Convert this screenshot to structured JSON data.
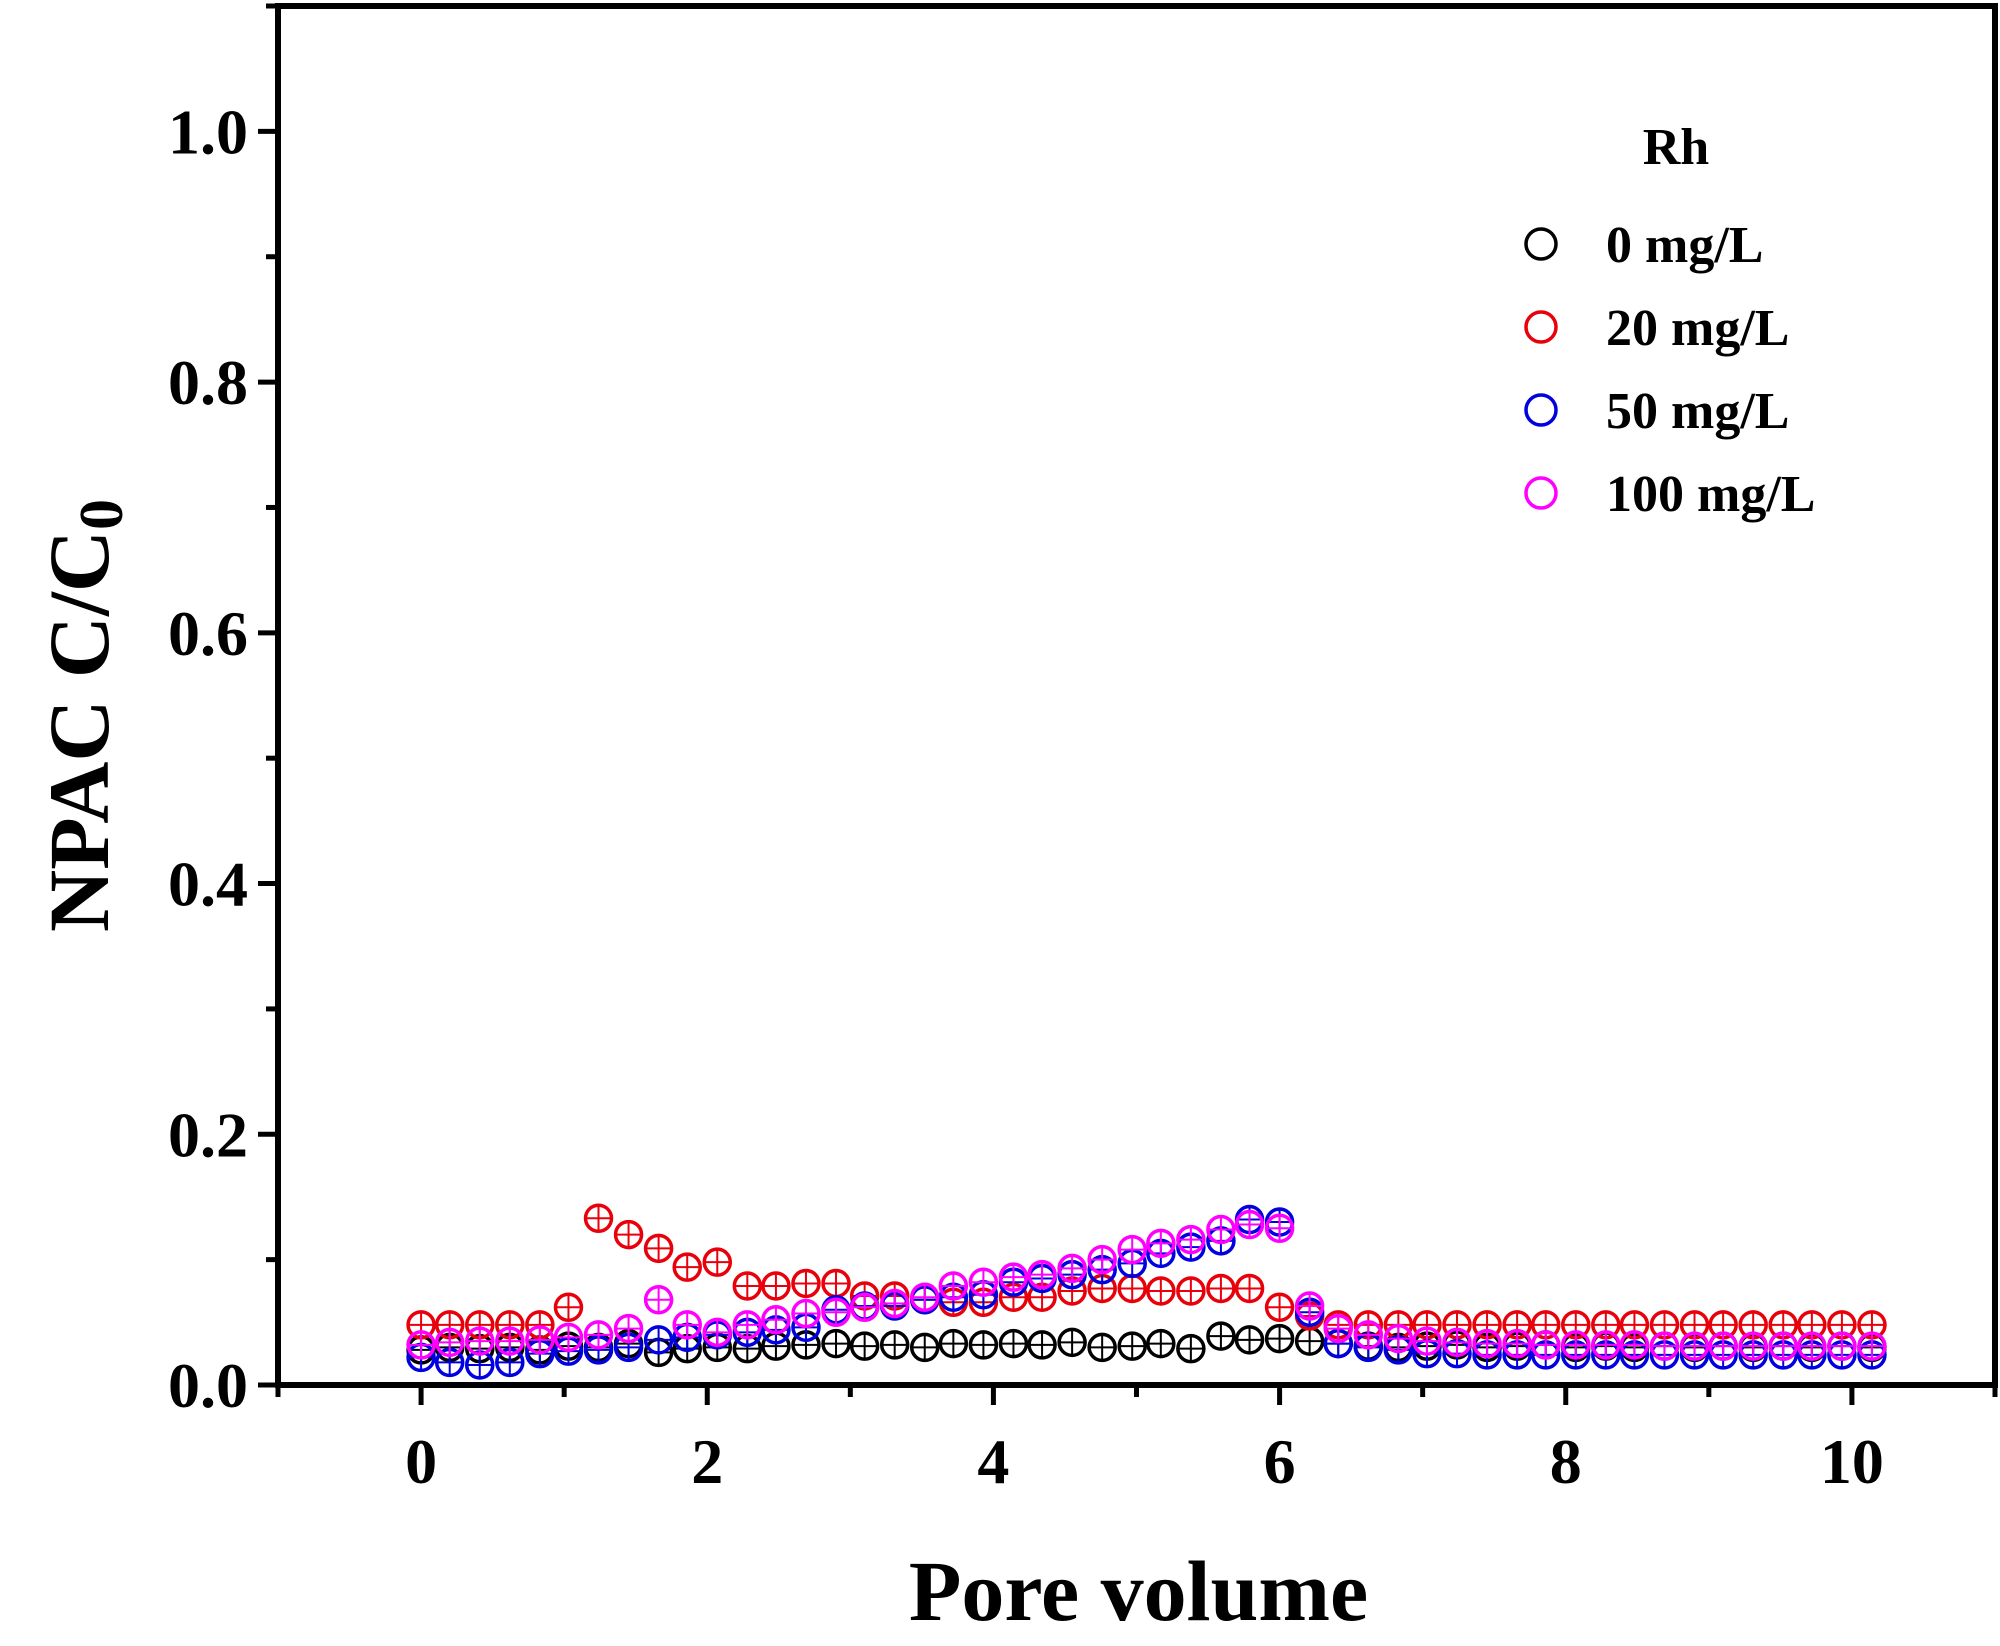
{
  "chart_data": {
    "type": "scatter",
    "title": "",
    "xlabel": "Pore volume",
    "ylabel_main": "NPAC C/C",
    "ylabel_subscript": "0",
    "xlim": [
      -1,
      11
    ],
    "ylim": [
      0,
      1.1
    ],
    "x_ticks": [
      "0",
      "2",
      "4",
      "6",
      "8",
      "10"
    ],
    "y_ticks": [
      "0.0",
      "0.2",
      "0.4",
      "0.6",
      "0.8",
      "1.0"
    ],
    "legend_title": "Rh",
    "series": [
      {
        "name": "0 mg/L",
        "color": "#000000",
        "x": [
          0,
          0.2,
          0.41,
          0.62,
          0.83,
          1.03,
          1.24,
          1.45,
          1.66,
          1.86,
          2.07,
          2.28,
          2.48,
          2.69,
          2.9,
          3.1,
          3.31,
          3.52,
          3.72,
          3.93,
          4.14,
          4.34,
          4.55,
          4.76,
          4.97,
          5.17,
          5.38,
          5.59,
          5.79,
          6.0,
          6.21,
          6.41,
          6.62,
          6.83,
          7.03,
          7.24,
          7.45,
          7.66,
          7.86,
          8.07,
          8.28,
          8.48,
          8.69,
          8.9,
          9.1,
          9.31,
          9.52,
          9.72,
          9.93,
          10.14
        ],
        "y": [
          0.028,
          0.03,
          0.029,
          0.03,
          0.028,
          0.031,
          0.03,
          0.033,
          0.026,
          0.029,
          0.03,
          0.029,
          0.031,
          0.032,
          0.033,
          0.031,
          0.032,
          0.03,
          0.033,
          0.032,
          0.033,
          0.032,
          0.034,
          0.03,
          0.031,
          0.033,
          0.029,
          0.039,
          0.036,
          0.037,
          0.035,
          0.033,
          0.031,
          0.03,
          0.031,
          0.032,
          0.03,
          0.031,
          0.032,
          0.03,
          0.031,
          0.03,
          0.031,
          0.03,
          0.031,
          0.03,
          0.031,
          0.03,
          0.031,
          0.03
        ]
      },
      {
        "name": "20 mg/L",
        "color": "#e8000b",
        "x": [
          0,
          0.2,
          0.41,
          0.62,
          0.83,
          1.03,
          1.24,
          1.45,
          1.66,
          1.86,
          2.07,
          2.28,
          2.48,
          2.69,
          2.9,
          3.1,
          3.31,
          3.52,
          3.72,
          3.93,
          4.14,
          4.34,
          4.55,
          4.76,
          4.97,
          5.17,
          5.38,
          5.59,
          5.79,
          6.0,
          6.21,
          6.41,
          6.62,
          6.83,
          7.03,
          7.24,
          7.45,
          7.66,
          7.86,
          8.07,
          8.28,
          8.48,
          8.69,
          8.9,
          9.1,
          9.31,
          9.52,
          9.72,
          9.93,
          10.14
        ],
        "y": [
          0.048,
          0.048,
          0.048,
          0.048,
          0.048,
          0.062,
          0.133,
          0.12,
          0.109,
          0.094,
          0.098,
          0.079,
          0.079,
          0.081,
          0.081,
          0.071,
          0.071,
          0.068,
          0.066,
          0.066,
          0.07,
          0.07,
          0.075,
          0.077,
          0.077,
          0.075,
          0.075,
          0.077,
          0.077,
          0.062,
          0.055,
          0.048,
          0.048,
          0.048,
          0.048,
          0.048,
          0.048,
          0.048,
          0.048,
          0.048,
          0.048,
          0.048,
          0.048,
          0.048,
          0.048,
          0.048,
          0.048,
          0.048,
          0.048,
          0.048
        ]
      },
      {
        "name": "50 mg/L",
        "color": "#0000e0",
        "x": [
          0,
          0.2,
          0.41,
          0.62,
          0.83,
          1.03,
          1.24,
          1.45,
          1.66,
          1.86,
          2.07,
          2.28,
          2.48,
          2.69,
          2.9,
          3.1,
          3.31,
          3.52,
          3.72,
          3.93,
          4.14,
          4.34,
          4.55,
          4.76,
          4.97,
          5.17,
          5.38,
          5.59,
          5.79,
          6.0,
          6.21,
          6.41,
          6.62,
          6.83,
          7.03,
          7.24,
          7.45,
          7.66,
          7.86,
          8.07,
          8.28,
          8.48,
          8.69,
          8.9,
          9.1,
          9.31,
          9.52,
          9.72,
          9.93,
          10.14
        ],
        "y": [
          0.022,
          0.018,
          0.016,
          0.018,
          0.025,
          0.027,
          0.028,
          0.03,
          0.036,
          0.038,
          0.04,
          0.042,
          0.044,
          0.046,
          0.06,
          0.063,
          0.063,
          0.068,
          0.07,
          0.072,
          0.082,
          0.085,
          0.088,
          0.092,
          0.097,
          0.105,
          0.11,
          0.115,
          0.132,
          0.13,
          0.058,
          0.033,
          0.03,
          0.028,
          0.025,
          0.025,
          0.024,
          0.024,
          0.024,
          0.024,
          0.024,
          0.024,
          0.024,
          0.024,
          0.024,
          0.024,
          0.024,
          0.024,
          0.024,
          0.024
        ]
      },
      {
        "name": "100 mg/L",
        "color": "#ff00ff",
        "x": [
          0,
          0.2,
          0.41,
          0.62,
          0.83,
          1.03,
          1.24,
          1.45,
          1.66,
          1.86,
          2.07,
          2.28,
          2.48,
          2.69,
          2.9,
          3.1,
          3.31,
          3.52,
          3.72,
          3.93,
          4.14,
          4.34,
          4.55,
          4.76,
          4.97,
          5.17,
          5.38,
          5.59,
          5.79,
          6.0,
          6.21,
          6.41,
          6.62,
          6.83,
          7.03,
          7.24,
          7.45,
          7.66,
          7.86,
          8.07,
          8.28,
          8.48,
          8.69,
          8.9,
          9.1,
          9.31,
          9.52,
          9.72,
          9.93,
          10.14
        ],
        "y": [
          0.032,
          0.034,
          0.035,
          0.035,
          0.036,
          0.038,
          0.04,
          0.045,
          0.068,
          0.048,
          0.042,
          0.048,
          0.052,
          0.057,
          0.058,
          0.062,
          0.065,
          0.07,
          0.079,
          0.082,
          0.086,
          0.088,
          0.093,
          0.1,
          0.108,
          0.113,
          0.116,
          0.124,
          0.128,
          0.125,
          0.063,
          0.045,
          0.04,
          0.037,
          0.035,
          0.034,
          0.033,
          0.033,
          0.032,
          0.032,
          0.032,
          0.032,
          0.031,
          0.031,
          0.031,
          0.031,
          0.031,
          0.031,
          0.031,
          0.031
        ]
      }
    ]
  }
}
